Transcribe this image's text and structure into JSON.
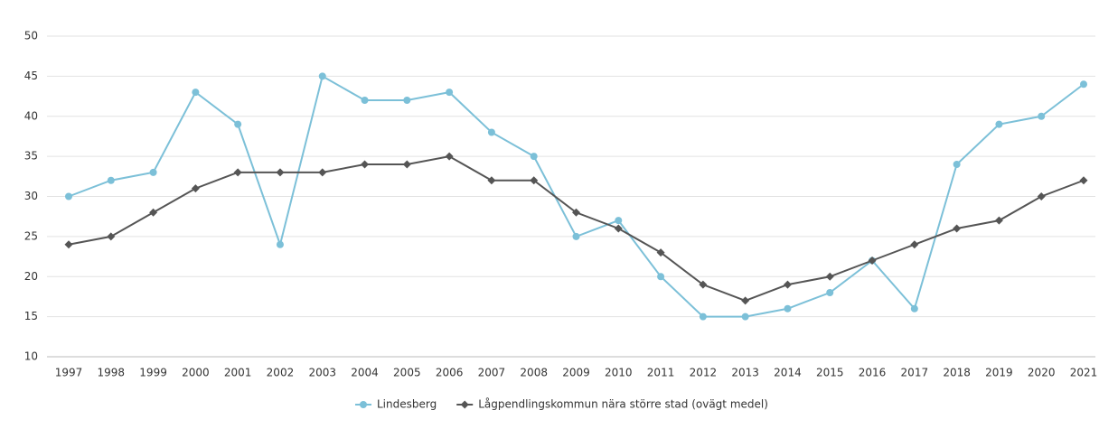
{
  "chart_data": {
    "type": "line",
    "categories": [
      "1997",
      "1998",
      "1999",
      "2000",
      "2001",
      "2002",
      "2003",
      "2004",
      "2005",
      "2006",
      "2007",
      "2008",
      "2009",
      "2010",
      "2011",
      "2012",
      "2013",
      "2014",
      "2015",
      "2016",
      "2017",
      "2018",
      "2019",
      "2020",
      "2021"
    ],
    "series": [
      {
        "name": "Lindesberg",
        "color": "#7cc0d8",
        "marker": "circle",
        "values": [
          30,
          32,
          33,
          43,
          39,
          24,
          45,
          42,
          42,
          43,
          38,
          35,
          25,
          27,
          20,
          15,
          15,
          16,
          18,
          22,
          16,
          34,
          39,
          40,
          44
        ]
      },
      {
        "name": "Lågpendlingskommun nära större stad (ovägt medel)",
        "color": "#555555",
        "marker": "diamond",
        "values": [
          24,
          25,
          28,
          31,
          33,
          33,
          33,
          34,
          34,
          35,
          32,
          32,
          28,
          26,
          23,
          19,
          17,
          19,
          20,
          22,
          24,
          26,
          27,
          30,
          32
        ]
      }
    ],
    "ylim": [
      10,
      50
    ],
    "yticks": [
      10,
      15,
      20,
      25,
      30,
      35,
      40,
      45,
      50
    ],
    "grid": true,
    "legend": "bottom"
  }
}
